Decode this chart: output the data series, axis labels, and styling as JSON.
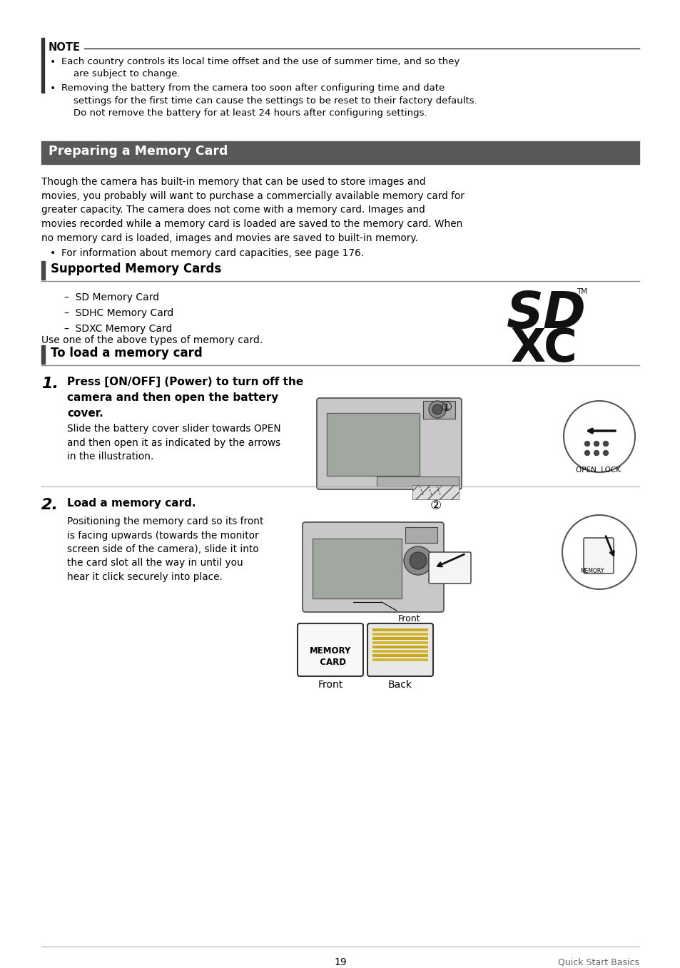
{
  "page_bg": "#ffffff",
  "note_bullets": [
    "Each country controls its local time offset and the use of summer time, and so they\n    are subject to change.",
    "Removing the battery from the camera too soon after configuring time and date\n    settings for the first time can cause the settings to be reset to their factory defaults.\n    Do not remove the battery for at least 24 hours after configuring settings."
  ],
  "section1_title": "Preparing a Memory Card",
  "section1_body": "Though the camera has built-in memory that can be used to store images and\nmovies, you probably will want to purchase a commercially available memory card for\ngreater capacity. The camera does not come with a memory card. Images and\nmovies recorded while a memory card is loaded are saved to the memory card. When\nno memory card is loaded, images and movies are saved to built-in memory.",
  "section1_bullet": "For information about memory card capacities, see page 176.",
  "section2_title": "Supported Memory Cards",
  "section2_items": [
    "SD Memory Card",
    "SDHC Memory Card",
    "SDXC Memory Card"
  ],
  "section2_footer": "Use one of the above types of memory card.",
  "section3_title": "To load a memory card",
  "step1_bold": "Press [ON/OFF] (Power) to turn off the\ncamera and then open the battery\ncover.",
  "step1_body": "Slide the battery cover slider towards OPEN\nand then open it as indicated by the arrows\nin the illustration.",
  "step2_bold": "Load a memory card.",
  "step2_body": "Positioning the memory card so its front\nis facing upwards (towards the monitor\nscreen side of the camera), slide it into\nthe card slot all the way in until you\nhear it click securely into place.",
  "footer_page": "19",
  "footer_right": "Quick Start Basics"
}
